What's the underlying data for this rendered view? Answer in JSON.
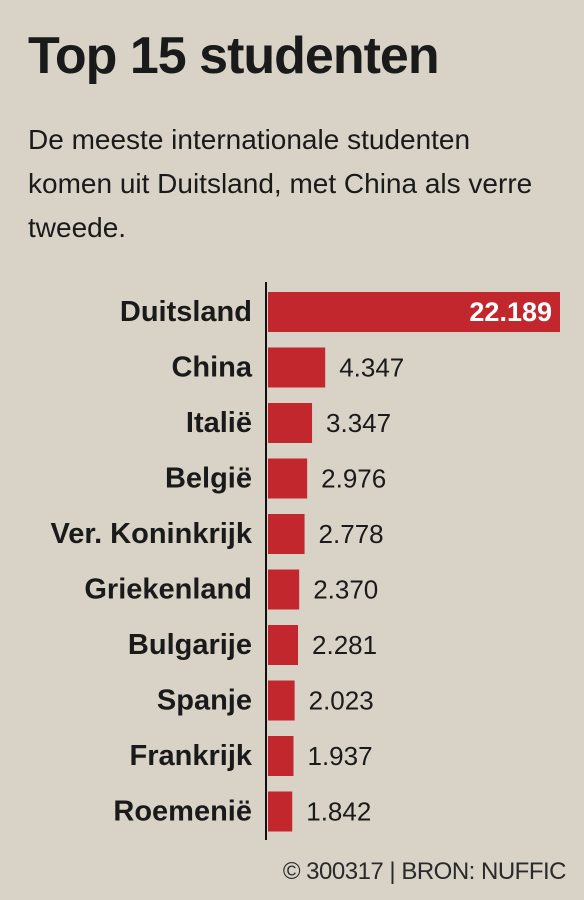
{
  "title": "Top 15 studenten",
  "subtitle": "De meeste internationale studenten komen uit Duitsland, met China als verre tweede.",
  "footer": "© 300317 | BRON: NUFFIC",
  "colors": {
    "bar": "#c1272d",
    "background": "#d9d3c7",
    "text": "#1a1a1a",
    "highlight_label": "#ffffff"
  },
  "chart_data": {
    "type": "bar",
    "orientation": "horizontal",
    "categories": [
      "Duitsland",
      "China",
      "Italië",
      "België",
      "Ver. Koninkrijk",
      "Griekenland",
      "Bulgarije",
      "Spanje",
      "Frankrijk",
      "Roemenië"
    ],
    "values": [
      22189,
      4347,
      3347,
      2976,
      2778,
      2370,
      2281,
      2023,
      1937,
      1842
    ],
    "value_labels": [
      "22.189",
      "4.347",
      "3.347",
      "2.976",
      "2.778",
      "2.370",
      "2.281",
      "2.023",
      "1.937",
      "1.842"
    ],
    "xlim": [
      0,
      22189
    ],
    "grid": false,
    "legend": false
  }
}
